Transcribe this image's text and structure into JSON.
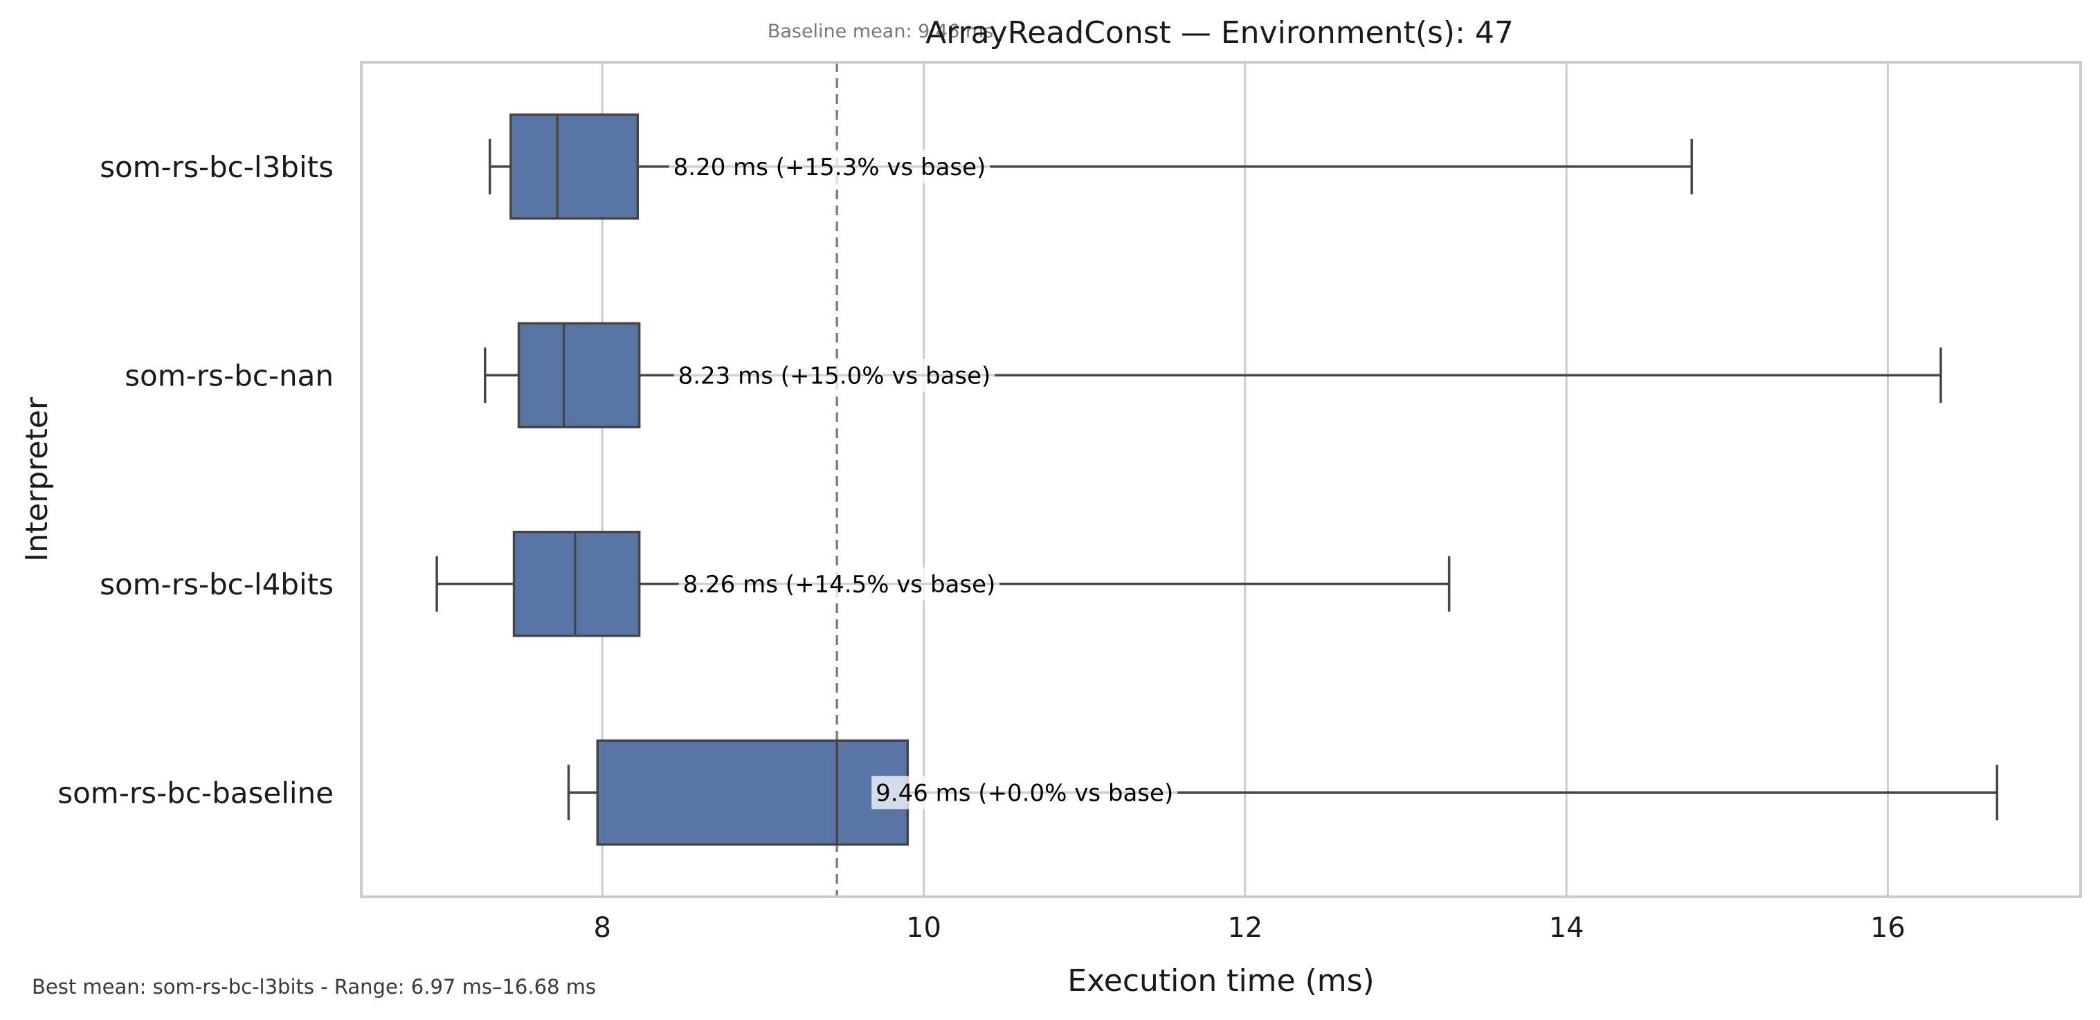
{
  "chart_data": {
    "type": "boxplot",
    "orientation": "horizontal",
    "title": "ArrayReadConst — Environment(s): 47",
    "subtitle": "Baseline mean: 9.46 ms",
    "xlabel": "Execution time (ms)",
    "ylabel": "Interpreter",
    "xlim": [
      6.5,
      17.2
    ],
    "xticks": [
      8,
      10,
      12,
      14,
      16
    ],
    "grid": "vertical",
    "box_color": "#5875a6",
    "baseline": {
      "value": 9.46,
      "color": "#808080",
      "style": "dashed"
    },
    "categories": [
      "som-rs-bc-l3bits",
      "som-rs-bc-nan",
      "som-rs-bc-l4bits",
      "som-rs-bc-baseline"
    ],
    "boxes": [
      {
        "name": "som-rs-bc-l3bits",
        "whisker_low": 7.3,
        "q1": 7.43,
        "median": 7.72,
        "q3": 8.22,
        "whisker_high": 14.78,
        "mean": 8.2,
        "annotation": "8.20 ms  (+15.3% vs base)"
      },
      {
        "name": "som-rs-bc-nan",
        "whisker_low": 7.27,
        "q1": 7.48,
        "median": 7.76,
        "q3": 8.23,
        "whisker_high": 16.33,
        "mean": 8.23,
        "annotation": "8.23 ms  (+15.0% vs base)"
      },
      {
        "name": "som-rs-bc-l4bits",
        "whisker_low": 6.97,
        "q1": 7.45,
        "median": 7.83,
        "q3": 8.23,
        "whisker_high": 13.27,
        "mean": 8.26,
        "annotation": "8.26 ms  (+14.5% vs base)"
      },
      {
        "name": "som-rs-bc-baseline",
        "whisker_low": 7.79,
        "q1": 7.97,
        "median": 9.46,
        "q3": 9.9,
        "whisker_high": 16.68,
        "mean": 9.46,
        "annotation": "9.46 ms  (+0.0% vs base)"
      }
    ],
    "footnote": "Best mean: som-rs-bc-l3bits - Range: 6.97 ms–16.68 ms"
  }
}
